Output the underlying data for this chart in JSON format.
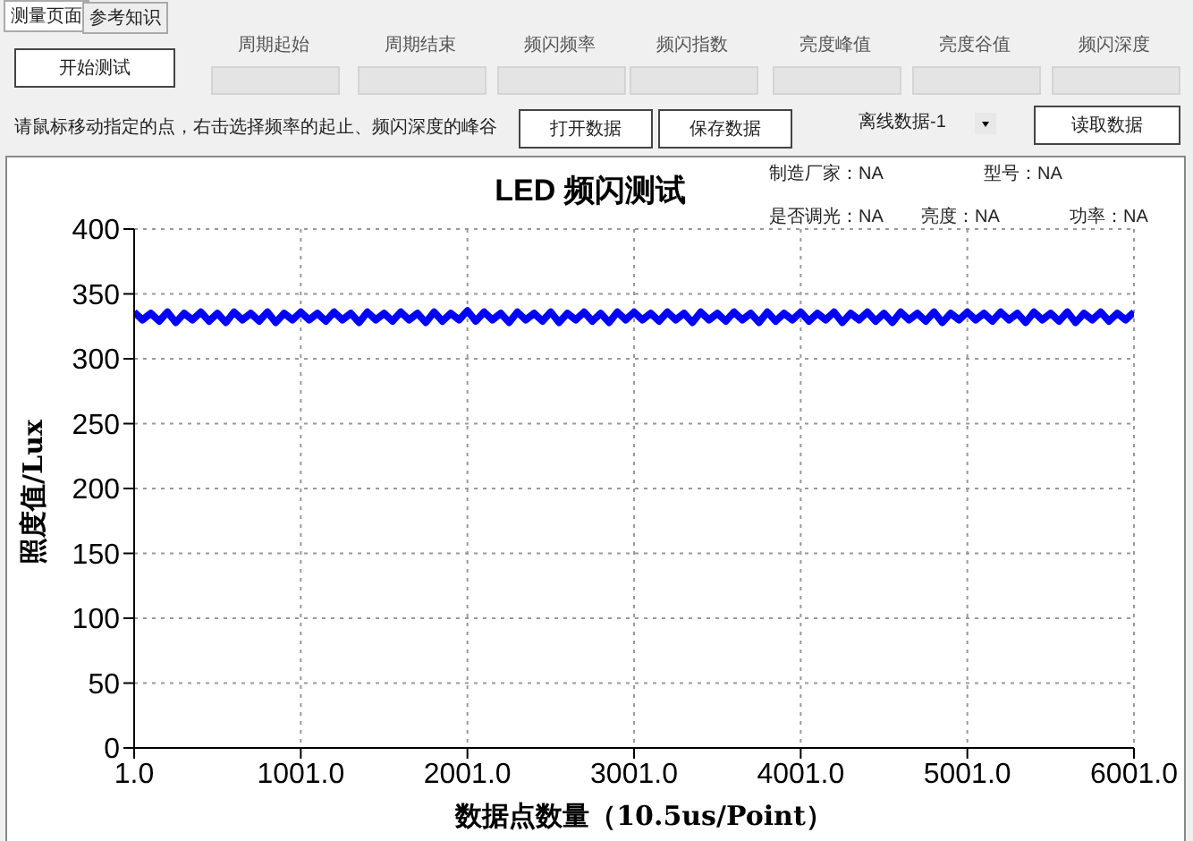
{
  "chart_data": {
    "type": "line",
    "title": "LED 频闪测试",
    "xlabel": "数据点数量（10.5us/Point）",
    "ylabel": "照度值/Lux",
    "annotations": [
      "测量页面",
      "参考知识",
      "开始测试",
      "周期起始",
      "周期结束",
      "频闪频率",
      "频闪指数",
      "亮度峰值",
      "亮度谷值",
      "频闪深度",
      "请鼠标移动指定的点，右击选择频率的起止、频闪深度的峰谷",
      "打开数据",
      "保存数据",
      "离线数据-1",
      "读取数据",
      "制造厂家：NA",
      "型号：NA",
      "是否调光：NA",
      "亮度：NA",
      "功率：NA"
    ],
    "x": [
      1,
      51,
      101,
      151,
      201,
      251,
      301,
      351,
      401,
      451,
      501,
      551,
      601,
      651,
      701,
      751,
      801,
      851,
      901,
      951,
      1001,
      1051,
      1101,
      1151,
      1201,
      1251,
      1301,
      1351,
      1401,
      1451,
      1501,
      1551,
      1601,
      1651,
      1701,
      1751,
      1801,
      1851,
      1901,
      1951,
      2001,
      2051,
      2101,
      2151,
      2201,
      2251,
      2301,
      2351,
      2401,
      2451,
      2501,
      2551,
      2601,
      2651,
      2701,
      2751,
      2801,
      2851,
      2901,
      2951,
      3001,
      3051,
      3101,
      3151,
      3201,
      3251,
      3301,
      3351,
      3401,
      3451,
      3501,
      3551,
      3601,
      3651,
      3701,
      3751,
      3801,
      3851,
      3901,
      3951,
      4001,
      4051,
      4101,
      4151,
      4201,
      4251,
      4301,
      4351,
      4401,
      4451,
      4501,
      4551,
      4601,
      4651,
      4701,
      4751,
      4801,
      4851,
      4901,
      4951,
      5001,
      5051,
      5101,
      5151,
      5201,
      5251,
      5301,
      5351,
      5401,
      5451,
      5501,
      5551,
      5601,
      5651,
      5701,
      5751,
      5801,
      5851,
      5901,
      5951,
      6001
    ],
    "series": [
      {
        "color": "#0000ff",
        "values": [
          336,
          330,
          335,
          329,
          336,
          328,
          335,
          330,
          336,
          329,
          335,
          328,
          336,
          330,
          335,
          329,
          336,
          328,
          335,
          330,
          336,
          330,
          335,
          329,
          336,
          330,
          335,
          328,
          336,
          330,
          335,
          329,
          336,
          330,
          335,
          328,
          336,
          329,
          335,
          330,
          337,
          329,
          336,
          330,
          335,
          328,
          336,
          330,
          335,
          329,
          336,
          328,
          335,
          330,
          336,
          329,
          335,
          328,
          336,
          330,
          336,
          330,
          335,
          329,
          336,
          330,
          335,
          328,
          336,
          330,
          335,
          329,
          336,
          330,
          335,
          328,
          336,
          329,
          335,
          330,
          336,
          329,
          335,
          330,
          336,
          328,
          335,
          330,
          336,
          329,
          335,
          328,
          336,
          330,
          335,
          329,
          336,
          328,
          335,
          330,
          336,
          330,
          335,
          329,
          336,
          330,
          335,
          328,
          336,
          330,
          335,
          329,
          336,
          328,
          335,
          330,
          336,
          329,
          335,
          330,
          336
        ]
      }
    ],
    "xlim": [
      1,
      6001
    ],
    "xticks": [
      {
        "value": 1,
        "label": "1.0"
      },
      {
        "value": 1001,
        "label": "1001.0"
      },
      {
        "value": 2001,
        "label": "2001.0"
      },
      {
        "value": 3001,
        "label": "3001.0"
      },
      {
        "value": 4001,
        "label": "4001.0"
      },
      {
        "value": 5001,
        "label": "5001.0"
      },
      {
        "value": 6001,
        "label": "6001.0"
      }
    ],
    "ylim": [
      0,
      400
    ],
    "yticks": [
      0,
      50,
      100,
      150,
      200,
      250,
      300,
      350,
      400
    ],
    "grid": true,
    "marker": "none",
    "line_style": "solid"
  }
}
